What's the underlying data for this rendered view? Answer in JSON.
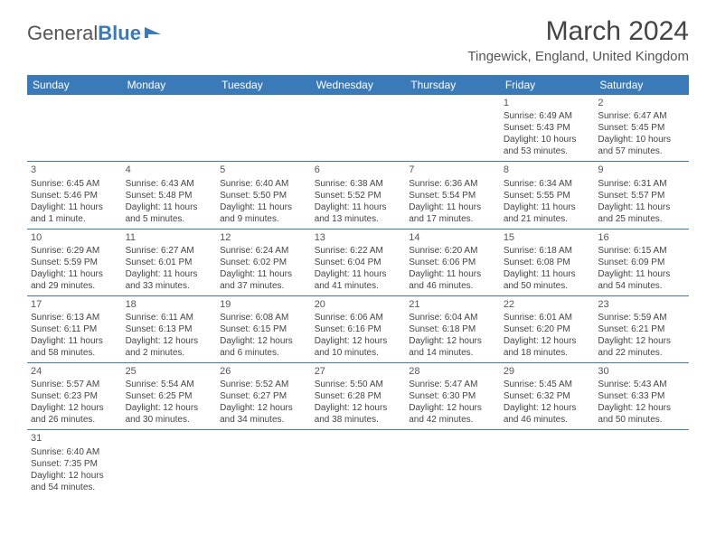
{
  "logo": {
    "text1": "General",
    "text2": "Blue"
  },
  "title": "March 2024",
  "location": "Tingewick, England, United Kingdom",
  "colors": {
    "header_bg": "#3a7ab8",
    "header_text": "#ffffff",
    "border": "#3a7ab8",
    "body_text": "#444444",
    "background": "#ffffff"
  },
  "font": {
    "family": "Arial",
    "title_size": 30,
    "location_size": 15,
    "header_size": 12,
    "cell_size": 10
  },
  "weekdays": [
    "Sunday",
    "Monday",
    "Tuesday",
    "Wednesday",
    "Thursday",
    "Friday",
    "Saturday"
  ],
  "weeks": [
    [
      null,
      null,
      null,
      null,
      null,
      {
        "n": "1",
        "sr": "6:49 AM",
        "ss": "5:43 PM",
        "dl": "10 hours and 53 minutes."
      },
      {
        "n": "2",
        "sr": "6:47 AM",
        "ss": "5:45 PM",
        "dl": "10 hours and 57 minutes."
      }
    ],
    [
      {
        "n": "3",
        "sr": "6:45 AM",
        "ss": "5:46 PM",
        "dl": "11 hours and 1 minute."
      },
      {
        "n": "4",
        "sr": "6:43 AM",
        "ss": "5:48 PM",
        "dl": "11 hours and 5 minutes."
      },
      {
        "n": "5",
        "sr": "6:40 AM",
        "ss": "5:50 PM",
        "dl": "11 hours and 9 minutes."
      },
      {
        "n": "6",
        "sr": "6:38 AM",
        "ss": "5:52 PM",
        "dl": "11 hours and 13 minutes."
      },
      {
        "n": "7",
        "sr": "6:36 AM",
        "ss": "5:54 PM",
        "dl": "11 hours and 17 minutes."
      },
      {
        "n": "8",
        "sr": "6:34 AM",
        "ss": "5:55 PM",
        "dl": "11 hours and 21 minutes."
      },
      {
        "n": "9",
        "sr": "6:31 AM",
        "ss": "5:57 PM",
        "dl": "11 hours and 25 minutes."
      }
    ],
    [
      {
        "n": "10",
        "sr": "6:29 AM",
        "ss": "5:59 PM",
        "dl": "11 hours and 29 minutes."
      },
      {
        "n": "11",
        "sr": "6:27 AM",
        "ss": "6:01 PM",
        "dl": "11 hours and 33 minutes."
      },
      {
        "n": "12",
        "sr": "6:24 AM",
        "ss": "6:02 PM",
        "dl": "11 hours and 37 minutes."
      },
      {
        "n": "13",
        "sr": "6:22 AM",
        "ss": "6:04 PM",
        "dl": "11 hours and 41 minutes."
      },
      {
        "n": "14",
        "sr": "6:20 AM",
        "ss": "6:06 PM",
        "dl": "11 hours and 46 minutes."
      },
      {
        "n": "15",
        "sr": "6:18 AM",
        "ss": "6:08 PM",
        "dl": "11 hours and 50 minutes."
      },
      {
        "n": "16",
        "sr": "6:15 AM",
        "ss": "6:09 PM",
        "dl": "11 hours and 54 minutes."
      }
    ],
    [
      {
        "n": "17",
        "sr": "6:13 AM",
        "ss": "6:11 PM",
        "dl": "11 hours and 58 minutes."
      },
      {
        "n": "18",
        "sr": "6:11 AM",
        "ss": "6:13 PM",
        "dl": "12 hours and 2 minutes."
      },
      {
        "n": "19",
        "sr": "6:08 AM",
        "ss": "6:15 PM",
        "dl": "12 hours and 6 minutes."
      },
      {
        "n": "20",
        "sr": "6:06 AM",
        "ss": "6:16 PM",
        "dl": "12 hours and 10 minutes."
      },
      {
        "n": "21",
        "sr": "6:04 AM",
        "ss": "6:18 PM",
        "dl": "12 hours and 14 minutes."
      },
      {
        "n": "22",
        "sr": "6:01 AM",
        "ss": "6:20 PM",
        "dl": "12 hours and 18 minutes."
      },
      {
        "n": "23",
        "sr": "5:59 AM",
        "ss": "6:21 PM",
        "dl": "12 hours and 22 minutes."
      }
    ],
    [
      {
        "n": "24",
        "sr": "5:57 AM",
        "ss": "6:23 PM",
        "dl": "12 hours and 26 minutes."
      },
      {
        "n": "25",
        "sr": "5:54 AM",
        "ss": "6:25 PM",
        "dl": "12 hours and 30 minutes."
      },
      {
        "n": "26",
        "sr": "5:52 AM",
        "ss": "6:27 PM",
        "dl": "12 hours and 34 minutes."
      },
      {
        "n": "27",
        "sr": "5:50 AM",
        "ss": "6:28 PM",
        "dl": "12 hours and 38 minutes."
      },
      {
        "n": "28",
        "sr": "5:47 AM",
        "ss": "6:30 PM",
        "dl": "12 hours and 42 minutes."
      },
      {
        "n": "29",
        "sr": "5:45 AM",
        "ss": "6:32 PM",
        "dl": "12 hours and 46 minutes."
      },
      {
        "n": "30",
        "sr": "5:43 AM",
        "ss": "6:33 PM",
        "dl": "12 hours and 50 minutes."
      }
    ],
    [
      {
        "n": "31",
        "sr": "6:40 AM",
        "ss": "7:35 PM",
        "dl": "12 hours and 54 minutes."
      },
      null,
      null,
      null,
      null,
      null,
      null
    ]
  ],
  "labels": {
    "sunrise": "Sunrise: ",
    "sunset": "Sunset: ",
    "daylight": "Daylight: "
  }
}
